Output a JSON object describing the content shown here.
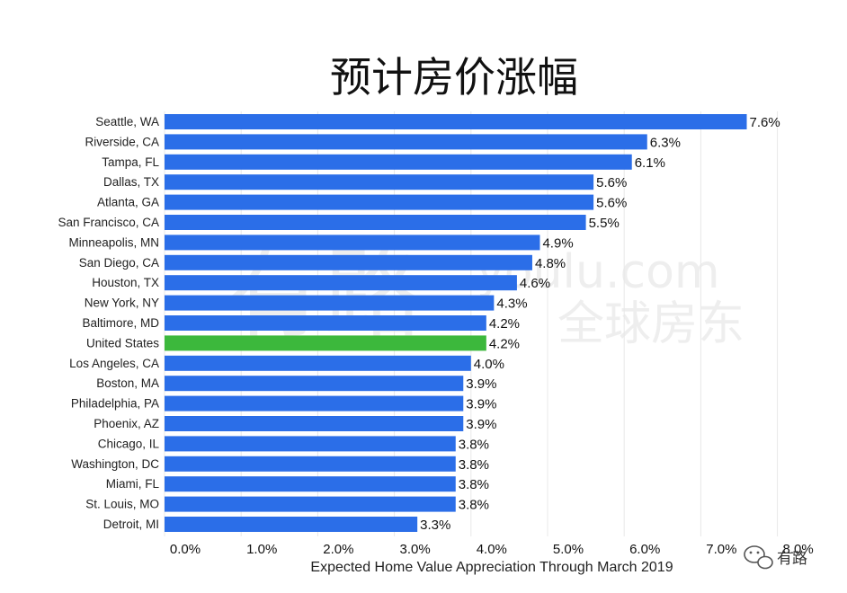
{
  "chart_data": {
    "type": "bar",
    "orientation": "horizontal",
    "title": "预计房价涨幅",
    "xlabel": "Expected Home Value Appreciation Through March 2019",
    "ylabel": "",
    "xlim": [
      0,
      8
    ],
    "x_ticks": [
      "0.0%",
      "1.0%",
      "2.0%",
      "3.0%",
      "4.0%",
      "5.0%",
      "6.0%",
      "7.0%",
      "8.0%"
    ],
    "grid": true,
    "categories": [
      "Seattle, WA",
      "Riverside, CA",
      "Tampa, FL",
      "Dallas, TX",
      "Atlanta, GA",
      "San Francisco, CA",
      "Minneapolis, MN",
      "San Diego, CA",
      "Houston, TX",
      "New York, NY",
      "Baltimore, MD",
      "United States",
      "Los Angeles, CA",
      "Boston, MA",
      "Philadelphia, PA",
      "Phoenix, AZ",
      "Chicago, IL",
      "Washington, DC",
      "Miami, FL",
      "St. Louis, MO",
      "Detroit, MI"
    ],
    "values": [
      7.6,
      6.3,
      6.1,
      5.6,
      5.6,
      5.5,
      4.9,
      4.8,
      4.6,
      4.3,
      4.2,
      4.2,
      4.0,
      3.9,
      3.9,
      3.9,
      3.8,
      3.8,
      3.8,
      3.8,
      3.3
    ],
    "value_labels": [
      "7.6%",
      "6.3%",
      "6.1%",
      "5.6%",
      "5.6%",
      "5.5%",
      "4.9%",
      "4.8%",
      "4.6%",
      "4.3%",
      "4.2%",
      "4.2%",
      "4.0%",
      "3.9%",
      "3.9%",
      "3.9%",
      "3.8%",
      "3.8%",
      "3.8%",
      "3.8%",
      "3.3%"
    ],
    "highlight_category": "United States",
    "colors": {
      "bar": "#2b6ee8",
      "highlight": "#3cb83c",
      "grid": "#e8e8e8"
    }
  },
  "watermark": {
    "text_main": "有路",
    "text_url": "youlu.com",
    "text_sub": "全球房东"
  },
  "brand": {
    "label": "有路"
  }
}
